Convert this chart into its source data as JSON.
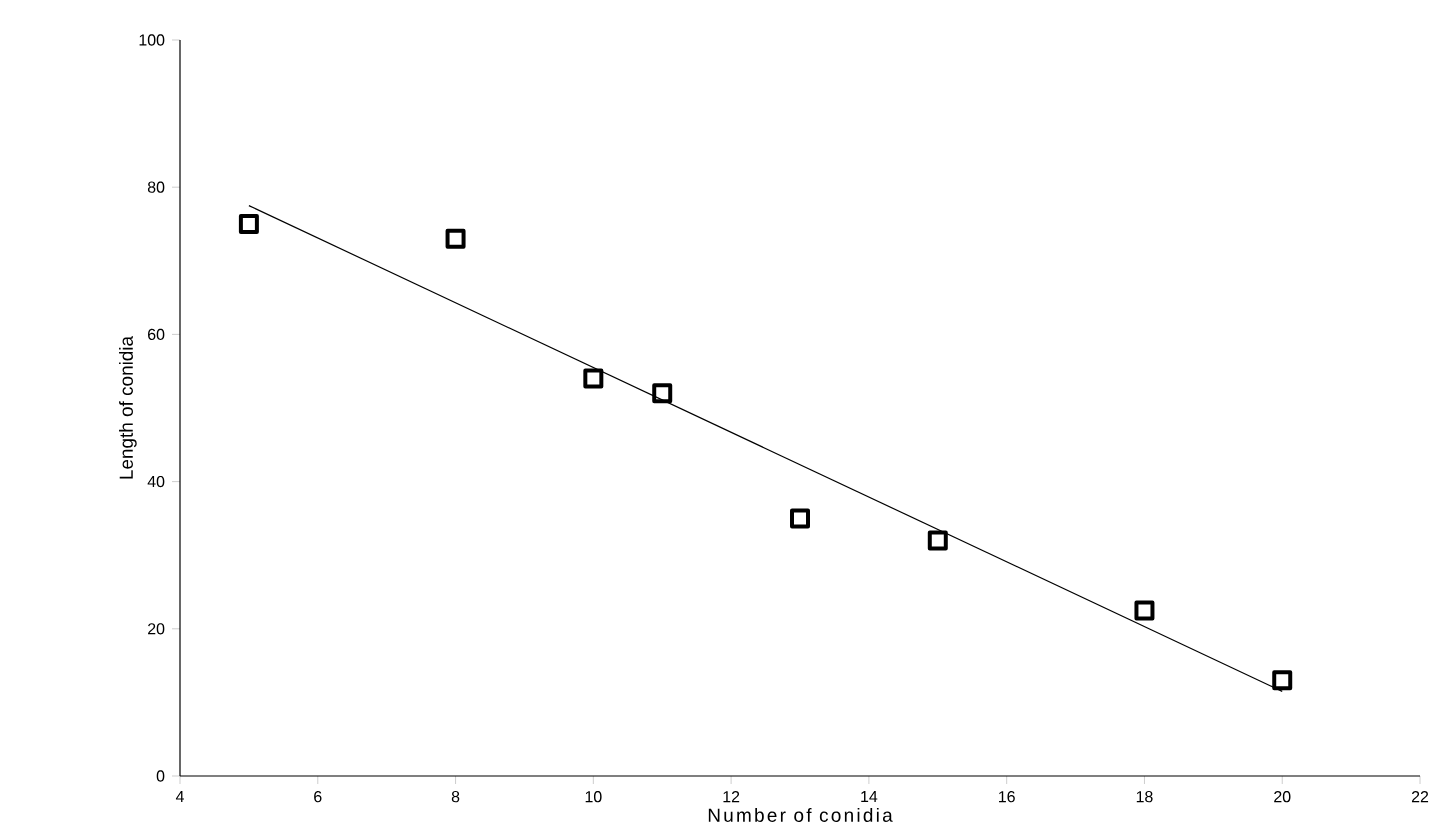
{
  "chart_data": {
    "type": "scatter",
    "xlabel": "Number of conidia",
    "ylabel": "Length of conidia",
    "xlim": [
      4,
      22
    ],
    "xticks": [
      4,
      6,
      8,
      10,
      12,
      14,
      16,
      18,
      20,
      22
    ],
    "ylim": [
      0,
      100
    ],
    "yticks": [
      0,
      20,
      40,
      60,
      80,
      100
    ],
    "grid": false,
    "marker": "square",
    "series": [
      {
        "color": "#000000",
        "x": [
          5,
          8,
          10,
          11,
          13,
          15,
          18,
          20
        ],
        "values": [
          75,
          73,
          54,
          52,
          35,
          32,
          22.5,
          13
        ]
      },
      {
        "type": "line",
        "color": "#000000",
        "marker": "none",
        "x": [
          5,
          20
        ],
        "values": [
          77.5,
          11.5
        ]
      }
    ]
  }
}
